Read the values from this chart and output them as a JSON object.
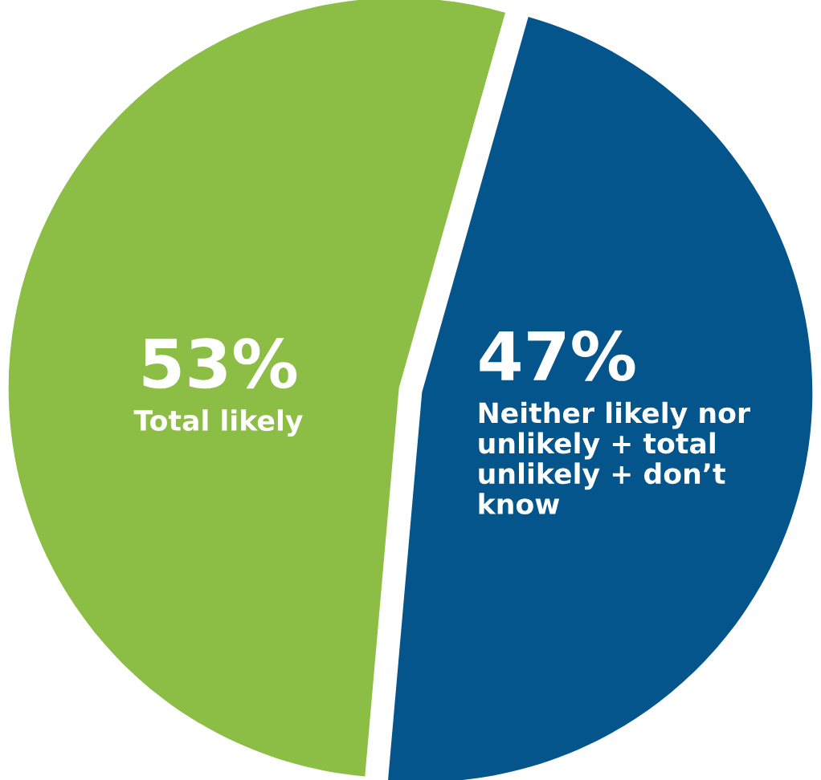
{
  "chart_data": {
    "type": "pie",
    "categories": [
      "Total likely",
      "Neither likely nor\nunlikely + total\nunlikely + don’t\nknow"
    ],
    "values": [
      53,
      47
    ],
    "colors": [
      "#8cbd45",
      "#03558b"
    ],
    "value_labels": [
      "53%",
      "47%"
    ],
    "legend": false
  }
}
